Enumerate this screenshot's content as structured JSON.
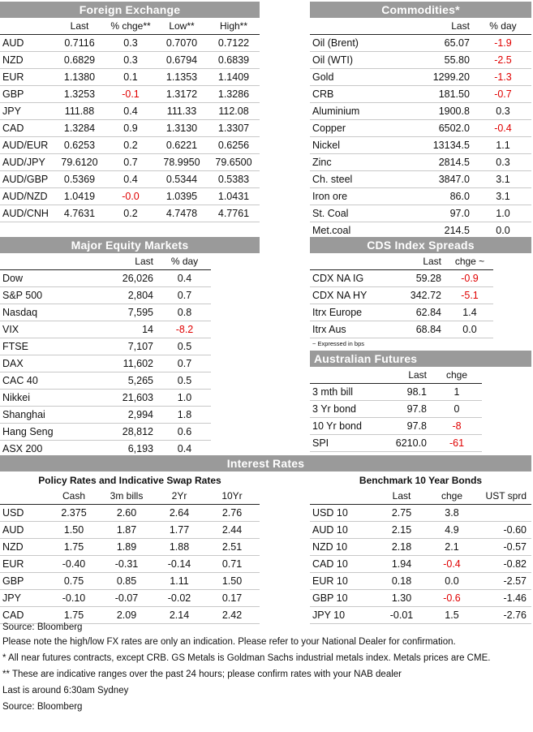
{
  "fx": {
    "title": "Foreign Exchange",
    "headers": [
      "",
      "Last",
      "% chge**",
      "Low**",
      "High**"
    ],
    "rows": [
      [
        "AUD",
        "0.7116",
        "0.3",
        "0.7070",
        "0.7122"
      ],
      [
        "NZD",
        "0.6829",
        "0.3",
        "0.6794",
        "0.6839"
      ],
      [
        "EUR",
        "1.1380",
        "0.1",
        "1.1353",
        "1.1409"
      ],
      [
        "GBP",
        "1.3253",
        "-0.1",
        "1.3172",
        "1.3286"
      ],
      [
        "JPY",
        "111.88",
        "0.4",
        "111.33",
        "112.08"
      ],
      [
        "CAD",
        "1.3284",
        "0.9",
        "1.3130",
        "1.3307"
      ],
      [
        "AUD/EUR",
        "0.6253",
        "0.2",
        "0.6221",
        "0.6256"
      ],
      [
        "AUD/JPY",
        "79.6120",
        "0.7",
        "78.9950",
        "79.6500"
      ],
      [
        "AUD/GBP",
        "0.5369",
        "0.4",
        "0.5344",
        "0.5383"
      ],
      [
        "AUD/NZD",
        "1.0419",
        "-0.0",
        "1.0395",
        "1.0431"
      ],
      [
        "AUD/CNH",
        "4.7631",
        "0.2",
        "4.7478",
        "4.7761"
      ]
    ]
  },
  "commodities": {
    "title": "Commodities*",
    "headers": [
      "",
      "Last",
      "% day"
    ],
    "rows": [
      [
        "Oil (Brent)",
        "65.07",
        "-1.9"
      ],
      [
        "Oil (WTI)",
        "55.80",
        "-2.5"
      ],
      [
        "Gold",
        "1299.20",
        "-1.3"
      ],
      [
        "CRB",
        "181.50",
        "-0.7"
      ],
      [
        "Aluminium",
        "1900.8",
        "0.3"
      ],
      [
        "Copper",
        "6502.0",
        "-0.4"
      ],
      [
        "Nickel",
        "13134.5",
        "1.1"
      ],
      [
        "Zinc",
        "2814.5",
        "0.3"
      ],
      [
        "Ch. steel",
        "3847.0",
        "3.1"
      ],
      [
        "Iron ore",
        "86.0",
        "3.1"
      ],
      [
        "St. Coal",
        "97.0",
        "1.0"
      ],
      [
        "Met.coal",
        "214.5",
        "0.0"
      ]
    ]
  },
  "equity": {
    "title": "Major Equity Markets",
    "headers": [
      "",
      "Last",
      "% day"
    ],
    "rows": [
      [
        "Dow",
        "26,026",
        "0.4"
      ],
      [
        "S&P 500",
        "2,804",
        "0.7"
      ],
      [
        "Nasdaq",
        "7,595",
        "0.8"
      ],
      [
        "VIX",
        "14",
        "-8.2"
      ],
      [
        "FTSE",
        "7,107",
        "0.5"
      ],
      [
        "DAX",
        "11,602",
        "0.7"
      ],
      [
        "CAC 40",
        "5,265",
        "0.5"
      ],
      [
        "Nikkei",
        "21,603",
        "1.0"
      ],
      [
        "Shanghai",
        "2,994",
        "1.8"
      ],
      [
        "Hang Seng",
        "28,812",
        "0.6"
      ],
      [
        "ASX 200",
        "6,193",
        "0.4"
      ]
    ]
  },
  "cds": {
    "title": "CDS Index Spreads",
    "headers": [
      "",
      "Last",
      "chge ~"
    ],
    "rows": [
      [
        "CDX NA IG",
        "59.28",
        "-0.9"
      ],
      [
        "CDX NA HY",
        "342.72",
        "-5.1"
      ],
      [
        "Itrx Europe",
        "62.84",
        "1.4"
      ],
      [
        "Itrx Aus",
        "68.84",
        "0.0"
      ]
    ],
    "note": "~ Expressed in bps"
  },
  "futures": {
    "title": "Australian Futures",
    "headers": [
      "",
      "Last",
      "chge"
    ],
    "rows": [
      [
        "3 mth bill",
        "98.1",
        "1"
      ],
      [
        "3 Yr bond",
        "97.8",
        "0"
      ],
      [
        "10 Yr bond",
        "97.8",
        "-8"
      ],
      [
        "SPI",
        "6210.0",
        "-61"
      ]
    ]
  },
  "interest": {
    "title": "Interest Rates",
    "policy": {
      "subtitle": "Policy Rates and Indicative Swap Rates",
      "headers": [
        "",
        "Cash",
        "3m bills",
        "2Yr",
        "10Yr"
      ],
      "rows": [
        [
          "USD",
          "2.375",
          "2.60",
          "2.64",
          "2.76"
        ],
        [
          "AUD",
          "1.50",
          "1.87",
          "1.77",
          "2.44"
        ],
        [
          "NZD",
          "1.75",
          "1.89",
          "1.88",
          "2.51"
        ],
        [
          "EUR",
          "-0.40",
          "-0.31",
          "-0.14",
          "0.71"
        ],
        [
          "GBP",
          "0.75",
          "0.85",
          "1.11",
          "1.50"
        ],
        [
          "JPY",
          "-0.10",
          "-0.07",
          "-0.02",
          "0.17"
        ],
        [
          "CAD",
          "1.75",
          "2.09",
          "2.14",
          "2.42"
        ]
      ]
    },
    "bonds": {
      "subtitle": "Benchmark 10 Year Bonds",
      "headers": [
        "",
        "Last",
        "chge",
        "UST sprd"
      ],
      "rows": [
        [
          "USD 10",
          "2.75",
          "3.8",
          ""
        ],
        [
          "AUD 10",
          "2.15",
          "4.9",
          "-0.60"
        ],
        [
          "NZD 10",
          "2.18",
          "2.1",
          "-0.57"
        ],
        [
          "CAD 10",
          "1.94",
          "-0.4",
          "-0.82"
        ],
        [
          "EUR 10",
          "0.18",
          "0.0",
          "-2.57"
        ],
        [
          "GBP 10",
          "1.30",
          "-0.6",
          "-1.46"
        ],
        [
          "JPY 10",
          "-0.01",
          "1.5",
          "-2.76"
        ]
      ]
    }
  },
  "footnotes": [
    "Source: Bloomberg",
    "Please note the high/low FX rates are only an indication. Please refer to your National Dealer for confirmation.",
    "* All near futures contracts, except CRB.  GS Metals is Goldman Sachs industrial metals index.  Metals prices are CME.",
    "** These are indicative ranges over the past 24 hours; please confirm rates with your NAB dealer",
    "Last is around 6:30am Sydney",
    "Source: Bloomberg"
  ]
}
